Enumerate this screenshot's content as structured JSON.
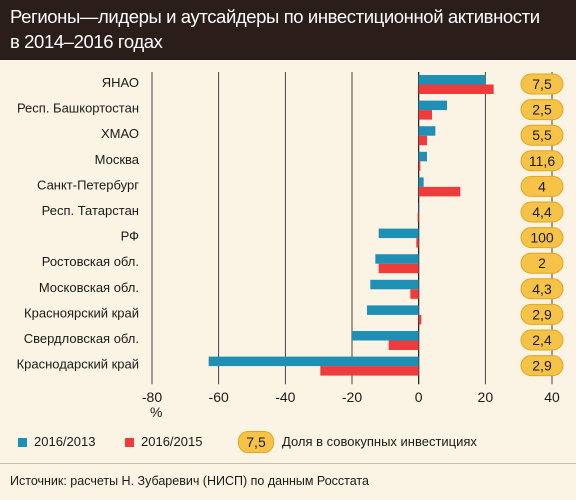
{
  "title_lines": [
    "Регионы—лидеры и аутсайдеры по инвестиционной активности",
    "в 2014–2016 годах"
  ],
  "x_unit_label": "%",
  "legend": {
    "series1": "2016/2013",
    "series2": "2016/2015",
    "share_pill": "7,5",
    "share_label": "Доля в совокупных инвестициях"
  },
  "source": "Источник: расчеты Н. Зубаревич (НИСП) по данным Росстата",
  "colors": {
    "series1": "#1e8fb5",
    "series2": "#ee3b3b",
    "pill": "#f6c247",
    "background": "#fbf4e4",
    "header": "#2b1d1a"
  },
  "chart_data": {
    "type": "bar",
    "orientation": "horizontal",
    "categories": [
      "ЯНАО",
      "Респ. Башкортостан",
      "ХМАО",
      "Москва",
      "Санкт-Петербург",
      "Респ. Татарстан",
      "РФ",
      "Ростовская обл.",
      "Московская обл.",
      "Красноярский край",
      "Свердловская обл.",
      "Краснодарский край"
    ],
    "series": [
      {
        "name": "2016/2013",
        "values": [
          20,
          8.5,
          5,
          2.5,
          1.5,
          0,
          -12,
          -13,
          -14.5,
          -15.5,
          -20,
          -63
        ]
      },
      {
        "name": "2016/2015",
        "values": [
          22.5,
          4,
          2.5,
          0.5,
          12.5,
          -0.3,
          -0.7,
          -12,
          -2.5,
          0.8,
          -9,
          -29.5
        ]
      }
    ],
    "share_in_total_investment": [
      "7,5",
      "2,5",
      "5,5",
      "11,6",
      "4",
      "4,4",
      "100",
      "2",
      "4,3",
      "2,9",
      "2,4",
      "2,9"
    ],
    "xlim": [
      -80,
      40
    ],
    "xticks": [
      -80,
      -60,
      -40,
      -20,
      0,
      20,
      40
    ],
    "xtick_labels": [
      "-80",
      "-60",
      "-40",
      "-20",
      "0",
      "20",
      "40"
    ],
    "grid": true
  }
}
